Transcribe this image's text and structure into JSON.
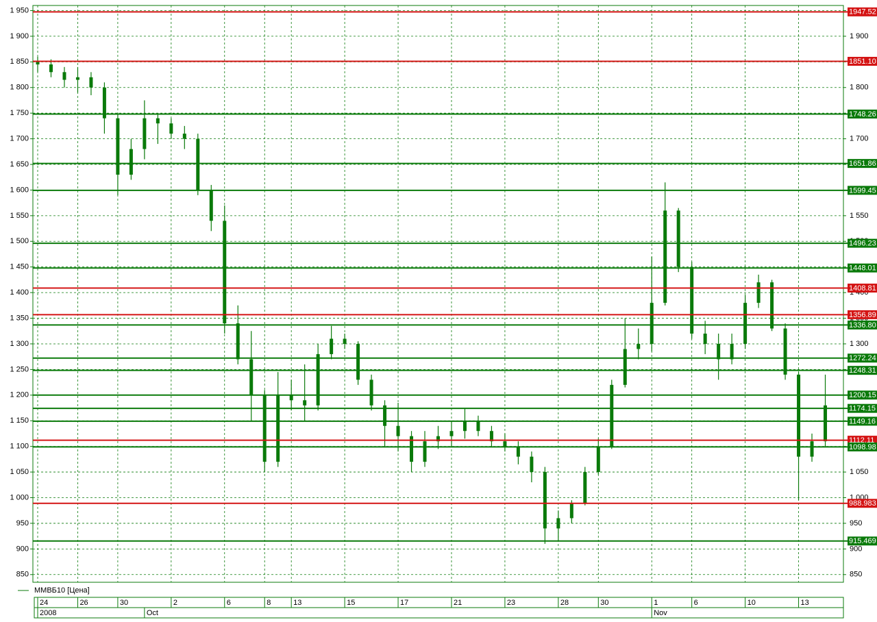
{
  "chart_data": {
    "type": "candlestick",
    "legend": "ММВБ10 [Цена]",
    "color": "#0a7a0a",
    "grid": true,
    "ylim": [
      835,
      1960
    ],
    "yticks": [
      {
        "value": 850,
        "label": "850"
      },
      {
        "value": 900,
        "label": "900"
      },
      {
        "value": 950,
        "label": "950"
      },
      {
        "value": 1000,
        "label": "1 000"
      },
      {
        "value": 1050,
        "label": "1 050"
      },
      {
        "value": 1100,
        "label": "1 100"
      },
      {
        "value": 1150,
        "label": "1 150"
      },
      {
        "value": 1200,
        "label": "1 200"
      },
      {
        "value": 1250,
        "label": "1 250"
      },
      {
        "value": 1300,
        "label": "1 300"
      },
      {
        "value": 1350,
        "label": "1 350"
      },
      {
        "value": 1400,
        "label": "1 400"
      },
      {
        "value": 1450,
        "label": "1 450"
      },
      {
        "value": 1500,
        "label": "1 500"
      },
      {
        "value": 1550,
        "label": "1 550"
      },
      {
        "value": 1600,
        "label": "1 600"
      },
      {
        "value": 1650,
        "label": "1 650"
      },
      {
        "value": 1700,
        "label": "1 700"
      },
      {
        "value": 1750,
        "label": "1 750"
      },
      {
        "value": 1800,
        "label": "1 800"
      },
      {
        "value": 1850,
        "label": "1 850"
      },
      {
        "value": 1900,
        "label": "1 900"
      },
      {
        "value": 1950,
        "label": "1 950"
      }
    ],
    "categories": [
      "24",
      null,
      null,
      "26",
      null,
      null,
      "30",
      null,
      null,
      null,
      "2",
      null,
      null,
      null,
      "6",
      null,
      null,
      "8",
      null,
      "13",
      null,
      null,
      null,
      "15",
      null,
      null,
      null,
      "17",
      null,
      null,
      null,
      "21",
      null,
      null,
      null,
      "23",
      null,
      null,
      null,
      "28",
      null,
      null,
      "30",
      null,
      null,
      null,
      "1",
      null,
      null,
      "6",
      null,
      null,
      null,
      "10",
      null,
      null,
      null,
      "13",
      null,
      null
    ],
    "periods": [
      "2008",
      null,
      null,
      null,
      null,
      null,
      null,
      null,
      "Oct",
      null,
      null,
      null,
      null,
      null,
      null,
      null,
      null,
      null,
      null,
      null,
      null,
      null,
      null,
      null,
      null,
      null,
      null,
      null,
      null,
      null,
      null,
      null,
      null,
      null,
      null,
      null,
      null,
      null,
      null,
      null,
      null,
      null,
      null,
      null,
      null,
      null,
      "Nov",
      null,
      null,
      null,
      null,
      null,
      null,
      null,
      null,
      null,
      null,
      null,
      null,
      null
    ],
    "open": [
      1850,
      1845,
      1830,
      1815,
      1820,
      1800,
      1740,
      1630,
      1680,
      1740,
      1730,
      1710,
      1700,
      1600,
      1540,
      1340,
      1270,
      1200,
      1070,
      1200,
      1190,
      1180,
      1280,
      1310,
      1300,
      1230,
      1180,
      1140,
      1120,
      1070,
      1110,
      1120,
      1130,
      1150,
      1130,
      1110,
      1100,
      1080,
      1050,
      940,
      960,
      990,
      1050,
      1100,
      1220,
      1290,
      1300,
      1380,
      1560,
      1450,
      1320,
      1300,
      1270,
      1300,
      1380,
      1420,
      1330,
      1240,
      1080,
      1110
    ],
    "close": [
      1845,
      1830,
      1815,
      1820,
      1800,
      1740,
      1630,
      1680,
      1740,
      1730,
      1710,
      1700,
      1600,
      1540,
      1340,
      1270,
      1200,
      1070,
      1200,
      1190,
      1180,
      1280,
      1310,
      1300,
      1230,
      1180,
      1140,
      1120,
      1070,
      1110,
      1120,
      1130,
      1150,
      1130,
      1110,
      1100,
      1080,
      1050,
      940,
      960,
      990,
      1050,
      1100,
      1220,
      1290,
      1300,
      1380,
      1560,
      1450,
      1320,
      1300,
      1270,
      1300,
      1380,
      1420,
      1330,
      1240,
      1080,
      1110,
      1180
    ],
    "high": [
      1860,
      1855,
      1840,
      1840,
      1830,
      1810,
      1750,
      1700,
      1775,
      1750,
      1740,
      1725,
      1710,
      1610,
      1570,
      1375,
      1325,
      1210,
      1245,
      1230,
      1260,
      1300,
      1335,
      1320,
      1305,
      1240,
      1190,
      1185,
      1130,
      1130,
      1140,
      1150,
      1175,
      1160,
      1140,
      1125,
      1110,
      1090,
      1060,
      975,
      995,
      1060,
      1115,
      1230,
      1350,
      1330,
      1470,
      1615,
      1565,
      1460,
      1345,
      1320,
      1320,
      1395,
      1435,
      1425,
      1340,
      1245,
      1125,
      1240
    ],
    "low": [
      1830,
      1820,
      1800,
      1790,
      1785,
      1710,
      1590,
      1620,
      1660,
      1690,
      1700,
      1680,
      1590,
      1520,
      1320,
      1260,
      1150,
      1050,
      1060,
      1170,
      1150,
      1170,
      1270,
      1290,
      1220,
      1170,
      1100,
      1090,
      1050,
      1060,
      1095,
      1100,
      1115,
      1120,
      1100,
      1090,
      1065,
      1030,
      910,
      915,
      950,
      985,
      1045,
      1095,
      1215,
      1270,
      1285,
      1375,
      1440,
      1310,
      1280,
      1230,
      1260,
      1290,
      1370,
      1325,
      1230,
      995,
      1070,
      1100
    ],
    "levels": [
      1947.52,
      {
        "value": 1851.1,
        "label": "1851.10"
      },
      1748.26,
      1651.86,
      1599.45,
      1496.23,
      1448.01,
      1408.81,
      1356.89,
      {
        "value": 1336.8,
        "label": "1336.80"
      },
      1272.24,
      1248.31,
      1200.15,
      1174.15,
      1149.16,
      1112.11,
      1098.98,
      988.983,
      915.469
    ],
    "level_colors": [
      "#d41414",
      "#d41414",
      "#0a7a0a",
      "#0a7a0a",
      "#0a7a0a",
      "#0a7a0a",
      "#0a7a0a",
      "#d41414",
      "#d41414",
      "#0a7a0a",
      "#0a7a0a",
      "#0a7a0a",
      "#0a7a0a",
      "#0a7a0a",
      "#0a7a0a",
      "#d41414",
      "#0a7a0a",
      "#d41414",
      "#0a7a0a"
    ]
  }
}
